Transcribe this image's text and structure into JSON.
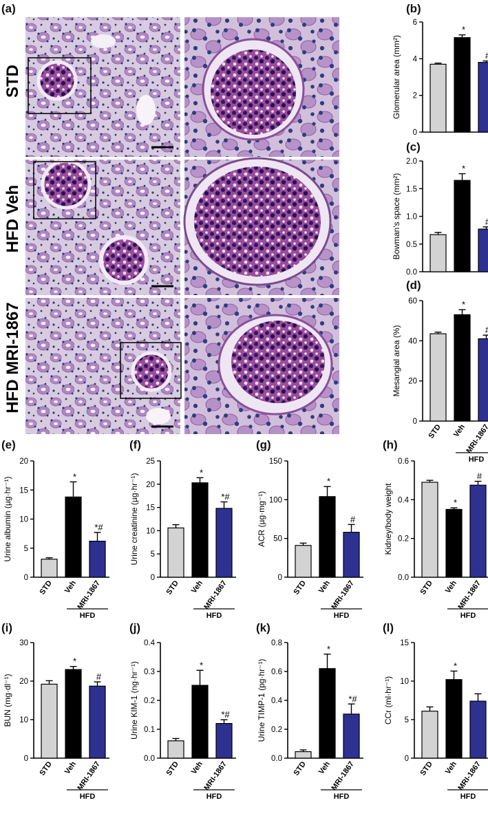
{
  "figure": {
    "panel_letter_a": "(a)",
    "row_labels": [
      "STD",
      "HFD Veh",
      "HFD MRI-1867"
    ]
  },
  "colors": {
    "STD": "#d3d3d3",
    "Veh": "#000000",
    "MRI-1867": "#2e3192",
    "tissue_background": "#d9cde2",
    "tubule_cytoplasm": "#a782b8",
    "nuclei": "#2b3a7a",
    "glomerulus_matrix": "#8e3e8e"
  },
  "micrographs": [
    {
      "row": "STD",
      "view": "overview",
      "description_icon": "kidney-histology-icon"
    },
    {
      "row": "STD",
      "view": "zoom",
      "description_icon": "glomerulus-icon"
    },
    {
      "row": "HFD Veh",
      "view": "overview",
      "description_icon": "kidney-histology-icon"
    },
    {
      "row": "HFD Veh",
      "view": "zoom",
      "description_icon": "glomerulus-icon"
    },
    {
      "row": "HFD MRI-1867",
      "view": "overview",
      "description_icon": "kidney-histology-icon"
    },
    {
      "row": "HFD MRI-1867",
      "view": "zoom",
      "description_icon": "glomerulus-icon"
    }
  ],
  "chart_data": [
    {
      "id": "b",
      "letter": "(b)",
      "type": "bar",
      "ylabel": "Glomerular area (mm²)",
      "ylim": [
        0,
        6
      ],
      "yticks": [
        0,
        2,
        4,
        6
      ],
      "yticklabels": [
        "0",
        "2",
        "4",
        "6"
      ],
      "categories": [
        "STD",
        "Veh",
        "MRI-1867"
      ],
      "values": [
        3.7,
        5.15,
        3.8
      ],
      "errors": [
        0.06,
        0.15,
        0.08
      ],
      "annotations": [
        "",
        "*",
        "#"
      ],
      "show_xlabels": false,
      "group_label": ""
    },
    {
      "id": "c",
      "letter": "(c)",
      "type": "bar",
      "ylabel": "Bowman's space (mm²)",
      "ylim": [
        0,
        2
      ],
      "yticks": [
        0,
        0.5,
        1,
        1.5,
        2
      ],
      "yticklabels": [
        "0.0",
        "0.5",
        "1.0",
        "1.5",
        "2.0"
      ],
      "categories": [
        "STD",
        "Veh",
        "MRI-1867"
      ],
      "values": [
        0.67,
        1.65,
        0.77
      ],
      "errors": [
        0.04,
        0.12,
        0.04
      ],
      "annotations": [
        "",
        "*",
        "#"
      ],
      "show_xlabels": false,
      "group_label": ""
    },
    {
      "id": "d",
      "letter": "(d)",
      "type": "bar",
      "ylabel": "Mesangial area (%)",
      "ylim": [
        0,
        60
      ],
      "yticks": [
        0,
        20,
        40,
        60
      ],
      "yticklabels": [
        "0",
        "20",
        "40",
        "60"
      ],
      "categories": [
        "STD",
        "Veh",
        "MRI-1867"
      ],
      "values": [
        43.5,
        53,
        41
      ],
      "errors": [
        0.8,
        2.5,
        1.8
      ],
      "annotations": [
        "",
        "*",
        "#"
      ],
      "show_xlabels": true,
      "group_label": "HFD"
    },
    {
      "id": "e",
      "letter": "(e)",
      "type": "bar",
      "ylabel": "Urine albumin (µg·hr⁻¹)",
      "ylim": [
        0,
        20
      ],
      "yticks": [
        0,
        5,
        10,
        15,
        20
      ],
      "yticklabels": [
        "0",
        "5",
        "10",
        "15",
        "20"
      ],
      "categories": [
        "STD",
        "Veh",
        "MRI-1867"
      ],
      "values": [
        3.1,
        13.8,
        6.2
      ],
      "errors": [
        0.25,
        2.6,
        1.5
      ],
      "annotations": [
        "",
        "*",
        "*#"
      ],
      "show_xlabels": true,
      "group_label": "HFD"
    },
    {
      "id": "f",
      "letter": "(f)",
      "type": "bar",
      "ylabel": "Urine creatinine (µg·hr⁻¹)",
      "ylim": [
        0,
        25
      ],
      "yticks": [
        0,
        5,
        10,
        15,
        20,
        25
      ],
      "yticklabels": [
        "0",
        "5",
        "10",
        "15",
        "20",
        "25"
      ],
      "categories": [
        "STD",
        "Veh",
        "MRI-1867"
      ],
      "values": [
        10.6,
        20.3,
        14.8
      ],
      "errors": [
        0.7,
        1.1,
        1.4
      ],
      "annotations": [
        "",
        "*",
        "*#"
      ],
      "show_xlabels": true,
      "group_label": "HFD"
    },
    {
      "id": "g",
      "letter": "(g)",
      "type": "bar",
      "ylabel": "ACR (µg·mg⁻¹)",
      "ylim": [
        0,
        150
      ],
      "yticks": [
        0,
        50,
        100,
        150
      ],
      "yticklabels": [
        "0",
        "50",
        "100",
        "150"
      ],
      "categories": [
        "STD",
        "Veh",
        "MRI-1867"
      ],
      "values": [
        41,
        104,
        58
      ],
      "errors": [
        3,
        13,
        10
      ],
      "annotations": [
        "",
        "*",
        "#"
      ],
      "show_xlabels": true,
      "group_label": "HFD"
    },
    {
      "id": "h",
      "letter": "(h)",
      "type": "bar",
      "ylabel": "Kidney/body weight",
      "ylim": [
        0,
        0.6
      ],
      "yticks": [
        0,
        0.2,
        0.4,
        0.6
      ],
      "yticklabels": [
        "0.0",
        "0.2",
        "0.4",
        "0.6"
      ],
      "categories": [
        "STD",
        "Veh",
        "MRI-1867"
      ],
      "values": [
        0.49,
        0.35,
        0.475
      ],
      "errors": [
        0.01,
        0.008,
        0.02
      ],
      "annotations": [
        "",
        "*",
        "#"
      ],
      "show_xlabels": true,
      "group_label": "HFD"
    },
    {
      "id": "i",
      "letter": "(i)",
      "type": "bar",
      "ylabel": "BUN (mg·dl⁻¹)",
      "ylim": [
        0,
        30
      ],
      "yticks": [
        0,
        10,
        20,
        30
      ],
      "yticklabels": [
        "0",
        "10",
        "20",
        "30"
      ],
      "categories": [
        "STD",
        "Veh",
        "MRI-1867"
      ],
      "values": [
        19.2,
        23,
        18.7
      ],
      "errors": [
        0.9,
        0.8,
        1.1
      ],
      "annotations": [
        "",
        "*",
        "#"
      ],
      "show_xlabels": true,
      "group_label": "HFD"
    },
    {
      "id": "j",
      "letter": "(j)",
      "type": "bar",
      "ylabel": "Urine KIM-1 (ng·hr⁻¹)",
      "ylim": [
        0,
        0.4
      ],
      "yticks": [
        0,
        0.1,
        0.2,
        0.3,
        0.4
      ],
      "yticklabels": [
        "0.0",
        "0.1",
        "0.2",
        "0.3",
        "0.4"
      ],
      "categories": [
        "STD",
        "Veh",
        "MRI-1867"
      ],
      "values": [
        0.06,
        0.252,
        0.12
      ],
      "errors": [
        0.008,
        0.052,
        0.013
      ],
      "annotations": [
        "",
        "*",
        "*#"
      ],
      "show_xlabels": true,
      "group_label": "HFD"
    },
    {
      "id": "k",
      "letter": "(k)",
      "type": "bar",
      "ylabel": "Urine TIMP-1 (pg·hr⁻¹)",
      "ylim": [
        0,
        0.8
      ],
      "yticks": [
        0,
        0.2,
        0.4,
        0.6,
        0.8
      ],
      "yticklabels": [
        "0.0",
        "0.2",
        "0.4",
        "0.6",
        "0.8"
      ],
      "categories": [
        "STD",
        "Veh",
        "MRI-1867"
      ],
      "values": [
        0.045,
        0.62,
        0.305
      ],
      "errors": [
        0.012,
        0.1,
        0.07
      ],
      "annotations": [
        "",
        "*",
        "*#"
      ],
      "show_xlabels": true,
      "group_label": "HFD"
    },
    {
      "id": "l",
      "letter": "(l)",
      "type": "bar",
      "ylabel": "CCr (ml·hr⁻¹)",
      "ylim": [
        0,
        15
      ],
      "yticks": [
        0,
        5,
        10,
        15
      ],
      "yticklabels": [
        "0",
        "5",
        "10",
        "15"
      ],
      "categories": [
        "STD",
        "Veh",
        "MRI-1867"
      ],
      "values": [
        6.1,
        10.2,
        7.4
      ],
      "errors": [
        0.55,
        1.1,
        0.95
      ],
      "annotations": [
        "",
        "*",
        ""
      ],
      "show_xlabels": true,
      "group_label": "HFD"
    }
  ]
}
